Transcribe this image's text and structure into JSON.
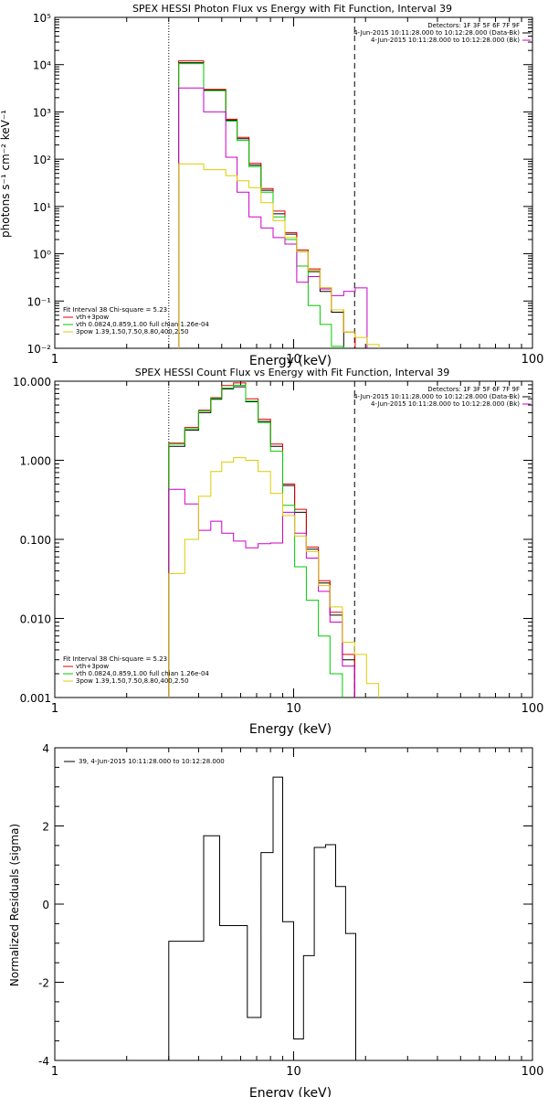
{
  "chart_data": [
    {
      "type": "line",
      "title": "SPEX HESSI Photon Flux vs Energy with Fit Function, Interval 39",
      "xlabel": "Energy (keV)",
      "ylabel": "photons s⁻¹ cm⁻² keV⁻¹",
      "xscale": "log",
      "yscale": "log",
      "xlim": [
        1,
        100
      ],
      "ylim": [
        0.01,
        100000
      ],
      "xticks": [
        "1",
        "10",
        "100"
      ],
      "yticks": [
        "10⁻²",
        "10⁻¹",
        "10⁰",
        "10¹",
        "10²",
        "10³",
        "10⁴",
        "10⁵"
      ],
      "vlines": [
        {
          "x": 3.0,
          "style": "dotted",
          "color": "#000000"
        },
        {
          "x": 18.0,
          "style": "dashed",
          "color": "#000000"
        }
      ],
      "legend_topright": [
        {
          "text": "Detectors: 1F 3F 5F 6F 7F 9F",
          "color": ""
        },
        {
          "text": "4-Jun-2015 10:11:28.000 to 10:12:28.000 (Data-Bk)",
          "color": "#000000"
        },
        {
          "text": "4-Jun-2015 10:11:28.000 to 10:12:28.000 (Bk)",
          "color": "#cc00cc"
        }
      ],
      "legend_bottomleft": [
        {
          "text": "Fit Interval 38   Chi-square = 5.23",
          "color": "#000000"
        },
        {
          "text": "vth+3pow",
          "color": "#dd0000"
        },
        {
          "text": "vth 0.0824,0.859,1.00  full chian 1.26e-04",
          "color": "#00cc00"
        },
        {
          "text": "3pow 1.39,1.50,7.50,8.80,400,2.50",
          "color": "#ddcc00"
        }
      ],
      "edges": [
        3.0,
        3.3,
        3.7,
        4.2,
        4.7,
        5.2,
        5.8,
        6.5,
        7.3,
        8.2,
        9.2,
        10.3,
        11.5,
        12.9,
        14.4,
        16.2,
        18.1,
        20.3,
        22.8,
        25.5
      ],
      "series": [
        {
          "color": "#000000",
          "values": [
            null,
            11000,
            11000,
            2900,
            2900,
            670,
            270,
            75,
            22,
            7,
            2.6,
            1.1,
            0.42,
            0.16,
            0.058,
            null,
            null,
            null,
            null
          ]
        },
        {
          "color": "#dd0000",
          "values": [
            null,
            12000,
            12000,
            3000,
            3000,
            700,
            290,
            82,
            24,
            8,
            2.8,
            1.2,
            0.48,
            0.19,
            0.065,
            0.022,
            null,
            null,
            null
          ]
        },
        {
          "color": "#00cc00",
          "values": [
            null,
            10500,
            10500,
            2800,
            2800,
            640,
            250,
            70,
            20,
            6,
            2.0,
            0.55,
            0.08,
            0.032,
            0.011,
            null,
            null,
            null,
            null
          ]
        },
        {
          "color": "#cc00cc",
          "values": [
            null,
            3200,
            3200,
            1000,
            1000,
            110,
            20,
            6,
            3.5,
            2.2,
            1.6,
            0.25,
            0.33,
            0.18,
            0.13,
            0.16,
            0.19,
            null,
            null
          ]
        },
        {
          "color": "#ddcc00",
          "values": [
            null,
            80,
            80,
            60,
            60,
            45,
            35,
            25,
            12,
            5,
            2.2,
            1.1,
            0.45,
            0.19,
            0.065,
            0.022,
            0.017,
            0.012,
            null
          ]
        }
      ]
    },
    {
      "type": "line",
      "title": "SPEX HESSI Count Flux vs Energy with Fit Function, Interval 39",
      "xlabel": "Energy (keV)",
      "ylabel": "",
      "xscale": "log",
      "yscale": "log",
      "xlim": [
        1,
        100
      ],
      "ylim": [
        0.001,
        10
      ],
      "xticks": [
        "1",
        "10",
        "100"
      ],
      "yticks": [
        "0.001",
        "0.010",
        "0.100",
        "1.000",
        "10.000"
      ],
      "vlines": [
        {
          "x": 3.0,
          "style": "dotted",
          "color": "#000000"
        },
        {
          "x": 18.0,
          "style": "dashed",
          "color": "#000000"
        }
      ],
      "legend_topright": [
        {
          "text": "Detectors: 1F 3F 5F 6F 7F 9F",
          "color": ""
        },
        {
          "text": "4-Jun-2015 10:11:28.000 to 10:12:28.000 (Data-Bk)",
          "color": "#000000"
        },
        {
          "text": "4-Jun-2015 10:11:28.000 to 10:12:28.000 (Bk)",
          "color": "#cc00cc"
        }
      ],
      "legend_bottomleft": [
        {
          "text": "Fit Interval 38   Chi-square = 5.23",
          "color": "#000000"
        },
        {
          "text": "vth+3pow",
          "color": "#dd0000"
        },
        {
          "text": "vth 0.0824,0.859,1.00  full chian 1.26e-04",
          "color": "#00cc00"
        },
        {
          "text": "3pow 1.39,1.50,7.50,8.80,400,2.50",
          "color": "#ddcc00"
        }
      ],
      "edges": [
        3.0,
        3.5,
        4.0,
        4.5,
        5.0,
        5.6,
        6.3,
        7.1,
        8.0,
        9.0,
        10.1,
        11.3,
        12.7,
        14.2,
        16.0,
        18.0,
        20.2,
        22.7,
        25.5
      ],
      "series": [
        {
          "color": "#000000",
          "values": [
            1.5,
            2.4,
            4.0,
            5.9,
            8.0,
            8.5,
            5.5,
            3.1,
            1.5,
            0.48,
            0.22,
            0.075,
            0.028,
            0.011,
            0.003,
            null,
            null,
            null
          ]
        },
        {
          "color": "#dd0000",
          "values": [
            1.65,
            2.6,
            4.3,
            6.2,
            8.8,
            9.5,
            6.0,
            3.3,
            1.6,
            0.5,
            0.24,
            0.08,
            0.03,
            0.012,
            0.0035,
            null,
            null,
            null
          ]
        },
        {
          "color": "#00cc00",
          "values": [
            1.6,
            2.5,
            4.2,
            6.1,
            8.2,
            8.9,
            5.6,
            3.0,
            1.3,
            0.27,
            0.045,
            0.017,
            0.006,
            0.002,
            null,
            null,
            null,
            null
          ]
        },
        {
          "color": "#cc00cc",
          "values": [
            0.43,
            0.28,
            0.13,
            0.17,
            0.12,
            0.095,
            0.078,
            0.088,
            0.09,
            0.22,
            0.12,
            0.058,
            0.022,
            0.009,
            0.0025,
            null,
            null,
            null
          ]
        },
        {
          "color": "#ddcc00",
          "values": [
            0.037,
            0.1,
            0.35,
            0.72,
            0.95,
            1.08,
            1.0,
            0.72,
            0.38,
            0.2,
            0.11,
            0.07,
            0.026,
            0.014,
            0.005,
            0.0035,
            0.0015,
            null
          ]
        }
      ]
    },
    {
      "type": "line",
      "title": "",
      "xlabel": "Energy (keV)",
      "ylabel": "Normalized Residuals (sigma)",
      "xscale": "log",
      "yscale": "linear",
      "xlim": [
        1,
        100
      ],
      "ylim": [
        -4,
        4
      ],
      "xticks": [
        "1",
        "10",
        "100"
      ],
      "yticks": [
        "-4",
        "-2",
        "0",
        "2",
        "4"
      ],
      "legend_topleft": [
        {
          "text": "39,  4-Jun-2015 10:11:28.000 to 10:12:28.000",
          "color": "#000000"
        }
      ],
      "edges": [
        3.0,
        3.5,
        4.2,
        4.9,
        5.6,
        6.4,
        7.3,
        8.2,
        9.0,
        10.0,
        11.0,
        12.2,
        13.6,
        15.0,
        16.5,
        18.2
      ],
      "series": [
        {
          "color": "#000000",
          "values": [
            -0.95,
            -0.95,
            1.75,
            -0.55,
            -0.55,
            -2.9,
            1.32,
            3.25,
            -0.45,
            -3.45,
            -1.32,
            1.45,
            1.52,
            0.45,
            -0.75
          ]
        }
      ]
    }
  ]
}
